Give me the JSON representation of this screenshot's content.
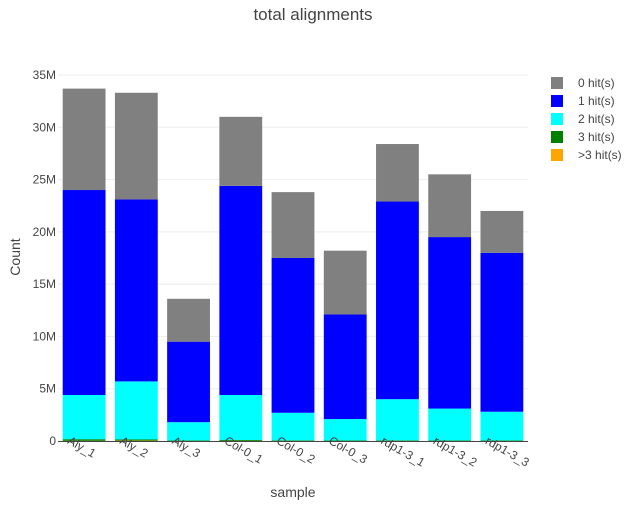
{
  "chart_data": {
    "type": "bar",
    "stacked": true,
    "title": "total alignments",
    "xlabel": "sample",
    "ylabel": "Count",
    "ylim": [
      0,
      35000000
    ],
    "y_ticks": [
      0,
      5000000,
      10000000,
      15000000,
      20000000,
      25000000,
      30000000,
      35000000
    ],
    "y_tick_labels": [
      "0",
      "5M",
      "10M",
      "15M",
      "20M",
      "25M",
      "30M",
      "35M"
    ],
    "grid": true,
    "legend_position": "top-right",
    "categories": [
      "Aly_1",
      "Aly_2",
      "Aly_3",
      "Col-0_1",
      "Col-0_2",
      "Col-0_3",
      "rdp1-3_1",
      "rdp1-3_2",
      "rdp1-3_3"
    ],
    "series": [
      {
        "name": ">3 hit(s)",
        "color": "#ffa500",
        "values": [
          20000,
          40000,
          10000,
          15000,
          10000,
          8000,
          10000,
          10000,
          10000
        ]
      },
      {
        "name": "3 hit(s)",
        "color": "#008000",
        "values": [
          150000,
          110000,
          40000,
          80000,
          50000,
          40000,
          50000,
          40000,
          40000
        ]
      },
      {
        "name": "2 hit(s)",
        "color": "#00ffff",
        "values": [
          4230000,
          5550000,
          1750000,
          4305000,
          2640000,
          2052000,
          3940000,
          3050000,
          2750000
        ]
      },
      {
        "name": "1 hit(s)",
        "color": "#0000ff",
        "values": [
          19600000,
          17400000,
          7700000,
          20000000,
          14800000,
          10000000,
          18900000,
          16400000,
          15200000
        ]
      },
      {
        "name": "0 hit(s)",
        "color": "#808080",
        "values": [
          9700000,
          10200000,
          4100000,
          6600000,
          6300000,
          6100000,
          5500000,
          6000000,
          4000000
        ]
      }
    ]
  }
}
